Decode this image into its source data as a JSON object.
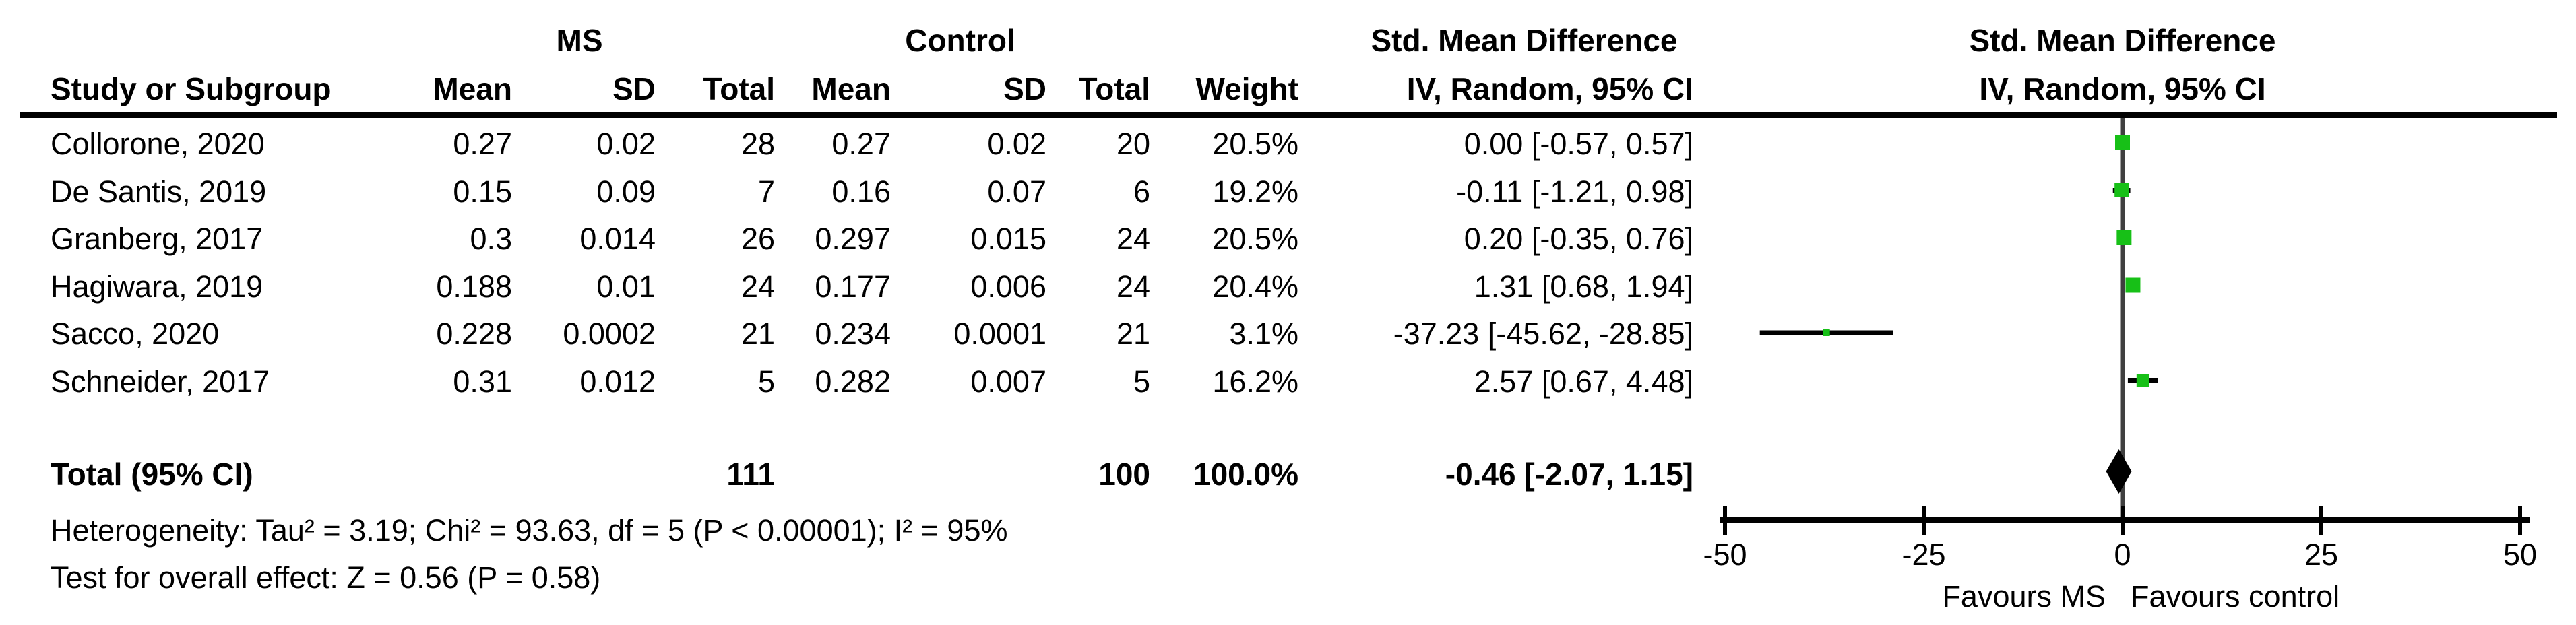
{
  "table": {
    "group_headers": {
      "ms": "MS",
      "control": "Control",
      "smd_text_col": "Std. Mean Difference",
      "smd_plot_col": "Std. Mean Difference"
    },
    "column_headers": {
      "study": "Study or Subgroup",
      "ms_mean": "Mean",
      "ms_sd": "SD",
      "ms_total": "Total",
      "c_mean": "Mean",
      "c_sd": "SD",
      "c_total": "Total",
      "weight": "Weight",
      "iv_random_text": "IV, Random, 95% CI",
      "iv_random_plot": "IV, Random, 95% CI"
    },
    "studies": [
      {
        "name": "Collorone, 2020",
        "ms_mean": "0.27",
        "ms_sd": "0.02",
        "ms_total": "28",
        "c_mean": "0.27",
        "c_sd": "0.02",
        "c_total": "20",
        "weight": "20.5%",
        "ci_text": "0.00 [-0.57, 0.57]"
      },
      {
        "name": "De Santis, 2019",
        "ms_mean": "0.15",
        "ms_sd": "0.09",
        "ms_total": "7",
        "c_mean": "0.16",
        "c_sd": "0.07",
        "c_total": "6",
        "weight": "19.2%",
        "ci_text": "-0.11 [-1.21, 0.98]"
      },
      {
        "name": "Granberg, 2017",
        "ms_mean": "0.3",
        "ms_sd": "0.014",
        "ms_total": "26",
        "c_mean": "0.297",
        "c_sd": "0.015",
        "c_total": "24",
        "weight": "20.5%",
        "ci_text": "0.20 [-0.35, 0.76]"
      },
      {
        "name": "Hagiwara, 2019",
        "ms_mean": "0.188",
        "ms_sd": "0.01",
        "ms_total": "24",
        "c_mean": "0.177",
        "c_sd": "0.006",
        "c_total": "24",
        "weight": "20.4%",
        "ci_text": "1.31 [0.68, 1.94]"
      },
      {
        "name": "Sacco, 2020",
        "ms_mean": "0.228",
        "ms_sd": "0.0002",
        "ms_total": "21",
        "c_mean": "0.234",
        "c_sd": "0.0001",
        "c_total": "21",
        "weight": "3.1%",
        "ci_text": "-37.23 [-45.62, -28.85]"
      },
      {
        "name": "Schneider, 2017",
        "ms_mean": "0.31",
        "ms_sd": "0.012",
        "ms_total": "5",
        "c_mean": "0.282",
        "c_sd": "0.007",
        "c_total": "5",
        "weight": "16.2%",
        "ci_text": "2.57 [0.67, 4.48]"
      }
    ],
    "total_row": {
      "label": "Total (95% CI)",
      "ms_total": "111",
      "c_total": "100",
      "weight": "100.0%",
      "ci_text": "-0.46 [-2.07, 1.15]"
    },
    "heterogeneity": "Heterogeneity: Tau² = 3.19; Chi² = 93.63, df = 5 (P < 0.00001); I² = 95%",
    "overall_effect": "Test for overall effect: Z = 0.56 (P = 0.58)"
  },
  "chart_data": {
    "type": "forest",
    "title": "Std. Mean Difference",
    "subtitle": "IV, Random, 95% CI",
    "x_axis": {
      "min": -50,
      "max": 50,
      "ticks": [
        -50,
        -25,
        0,
        25,
        50
      ]
    },
    "favours_left": "Favours MS",
    "favours_right": "Favours control",
    "points": [
      {
        "study": "Collorone, 2020",
        "effect": 0.0,
        "ci_low": -0.57,
        "ci_high": 0.57,
        "weight": 20.5
      },
      {
        "study": "De Santis, 2019",
        "effect": -0.11,
        "ci_low": -1.21,
        "ci_high": 0.98,
        "weight": 19.2
      },
      {
        "study": "Granberg, 2017",
        "effect": 0.2,
        "ci_low": -0.35,
        "ci_high": 0.76,
        "weight": 20.5
      },
      {
        "study": "Hagiwara, 2019",
        "effect": 1.31,
        "ci_low": 0.68,
        "ci_high": 1.94,
        "weight": 20.4
      },
      {
        "study": "Sacco, 2020",
        "effect": -37.23,
        "ci_low": -45.62,
        "ci_high": -28.85,
        "weight": 3.1
      },
      {
        "study": "Schneider, 2017",
        "effect": 2.57,
        "ci_low": 0.67,
        "ci_high": 4.48,
        "weight": 16.2
      }
    ],
    "total": {
      "effect": -0.46,
      "ci_low": -2.07,
      "ci_high": 1.15
    }
  },
  "colors": {
    "marker_green": "#17c017",
    "zero_line": "#3f3f3f",
    "axis_black": "#000000",
    "diamond_black": "#000000"
  }
}
